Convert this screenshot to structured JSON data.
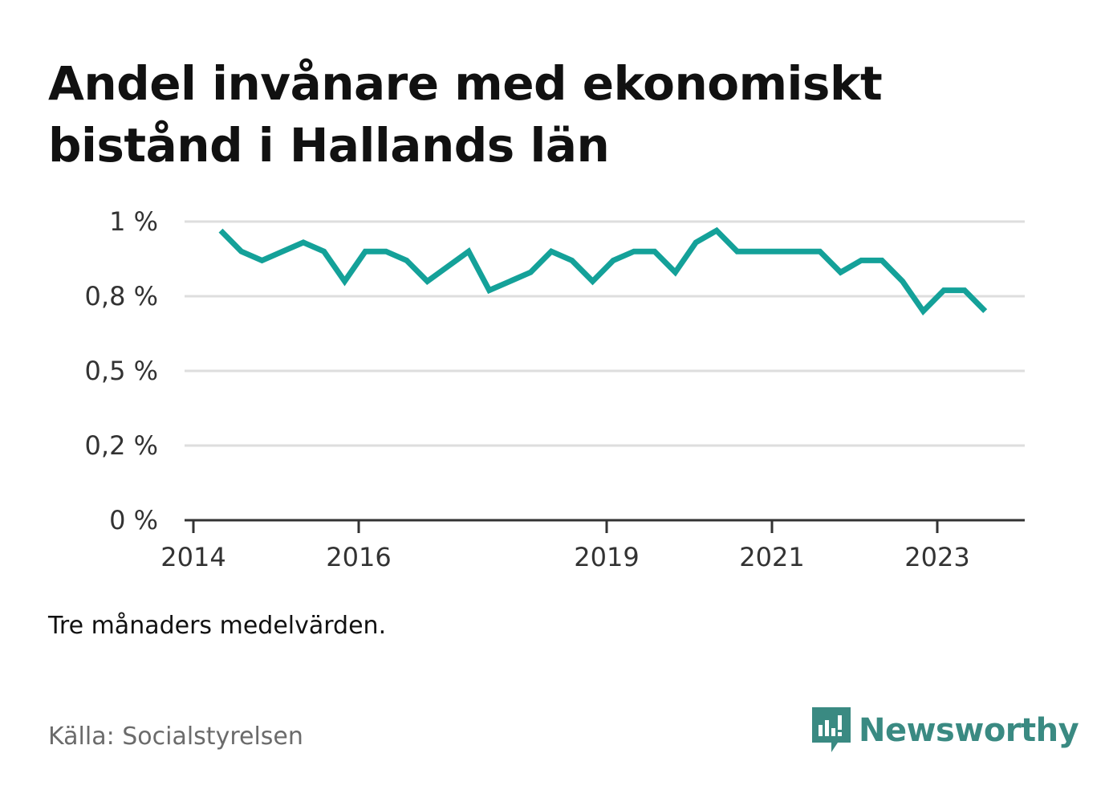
{
  "title": "Andel invånare med ekonomiskt bistånd i Hallands län",
  "note": "Tre månaders medelvärden.",
  "source": "Källa: Socialstyrelsen",
  "brand": {
    "name": "Newsworthy",
    "icon": "newsworthy-logo-icon",
    "color": "#3a8a82"
  },
  "chart_data": {
    "type": "line",
    "title": "Andel invånare med ekonomiskt bistånd i Hallands län",
    "xlabel": "",
    "ylabel": "",
    "x_range": [
      2014.0,
      2024.2
    ],
    "ylim": [
      0,
      1
    ],
    "y_ticks": [
      {
        "value": 0,
        "label": "0 %"
      },
      {
        "value": 0.25,
        "label": "0,2 %"
      },
      {
        "value": 0.5,
        "label": "0,5 %"
      },
      {
        "value": 0.75,
        "label": "0,8 %"
      },
      {
        "value": 1,
        "label": "1 %"
      }
    ],
    "x_ticks": [
      {
        "value": 2014,
        "label": "2014"
      },
      {
        "value": 2016,
        "label": "2016"
      },
      {
        "value": 2019,
        "label": "2019"
      },
      {
        "value": 2021,
        "label": "2021"
      },
      {
        "value": 2023,
        "label": "2023"
      }
    ],
    "grid": true,
    "series": [
      {
        "color": "#14a199",
        "points": [
          [
            2014.33,
            0.97
          ],
          [
            2014.58,
            0.9
          ],
          [
            2014.83,
            0.87
          ],
          [
            2015.08,
            0.9
          ],
          [
            2015.33,
            0.93
          ],
          [
            2015.58,
            0.9
          ],
          [
            2015.83,
            0.8
          ],
          [
            2016.08,
            0.9
          ],
          [
            2016.33,
            0.9
          ],
          [
            2016.58,
            0.87
          ],
          [
            2016.83,
            0.8
          ],
          [
            2017.08,
            0.85
          ],
          [
            2017.33,
            0.9
          ],
          [
            2017.58,
            0.77
          ],
          [
            2017.83,
            0.8
          ],
          [
            2018.08,
            0.83
          ],
          [
            2018.33,
            0.9
          ],
          [
            2018.58,
            0.87
          ],
          [
            2018.83,
            0.8
          ],
          [
            2019.08,
            0.87
          ],
          [
            2019.33,
            0.9
          ],
          [
            2019.58,
            0.9
          ],
          [
            2019.83,
            0.83
          ],
          [
            2020.08,
            0.93
          ],
          [
            2020.33,
            0.97
          ],
          [
            2020.58,
            0.9
          ],
          [
            2020.83,
            0.9
          ],
          [
            2021.08,
            0.9
          ],
          [
            2021.33,
            0.9
          ],
          [
            2021.58,
            0.9
          ],
          [
            2021.83,
            0.83
          ],
          [
            2022.08,
            0.87
          ],
          [
            2022.33,
            0.87
          ],
          [
            2022.58,
            0.8
          ],
          [
            2022.83,
            0.7
          ],
          [
            2023.08,
            0.77
          ],
          [
            2023.33,
            0.77
          ],
          [
            2023.58,
            0.7
          ]
        ]
      }
    ]
  }
}
